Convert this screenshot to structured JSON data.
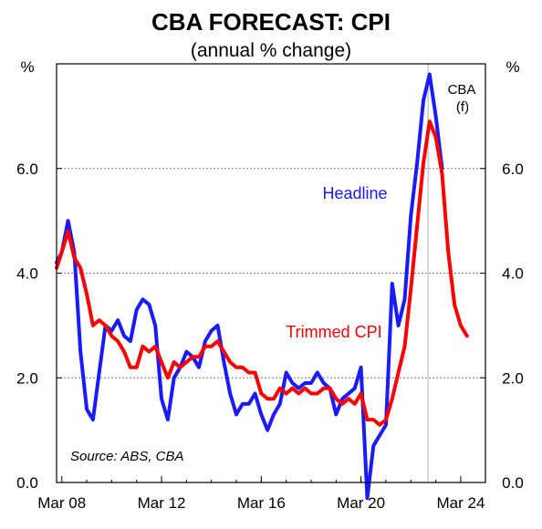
{
  "chart_data": {
    "type": "line",
    "title": "CBA FORECAST: CPI",
    "subtitle": "(annual % change)",
    "y_unit_left": "%",
    "y_unit_right": "%",
    "ylim": [
      0,
      8
    ],
    "y_ticks": [
      "0.0",
      "2.0",
      "4.0",
      "6.0"
    ],
    "y_tick_values": [
      0,
      2,
      4,
      6
    ],
    "x_ticks": [
      "Mar 08",
      "Mar 12",
      "Mar 16",
      "Mar 20",
      "Mar 24"
    ],
    "x_tick_values": [
      2008.21,
      2012.21,
      2016.21,
      2020.21,
      2024.21
    ],
    "xlim": [
      2008.0,
      2025.2
    ],
    "forecast_start": 2022.9,
    "forecast_label": [
      "CBA",
      "(f)"
    ],
    "source": "Source: ABS, CBA",
    "grid": "horizontal-dotted",
    "colors": {
      "headline": "#1a1aff",
      "trimmed": "#ff0000",
      "forecast_line": "#b0b0b0",
      "grid": "#808080"
    },
    "series": [
      {
        "name": "Headline",
        "label_text": "Headline",
        "color": "#1a1aff",
        "x": [
          2008.0,
          2008.21,
          2008.46,
          2008.71,
          2008.96,
          2009.21,
          2009.46,
          2009.71,
          2009.96,
          2010.21,
          2010.46,
          2010.71,
          2010.96,
          2011.21,
          2011.46,
          2011.71,
          2011.96,
          2012.21,
          2012.46,
          2012.71,
          2012.96,
          2013.21,
          2013.46,
          2013.71,
          2013.96,
          2014.21,
          2014.46,
          2014.71,
          2014.96,
          2015.21,
          2015.46,
          2015.71,
          2015.96,
          2016.21,
          2016.46,
          2016.71,
          2016.96,
          2017.21,
          2017.46,
          2017.71,
          2017.96,
          2018.21,
          2018.46,
          2018.71,
          2018.96,
          2019.21,
          2019.46,
          2019.71,
          2019.96,
          2020.21,
          2020.46,
          2020.71,
          2020.96,
          2021.21,
          2021.46,
          2021.71,
          2021.96,
          2022.21,
          2022.46,
          2022.71,
          2022.96,
          2023.21,
          2023.46
        ],
        "values": [
          4.2,
          4.4,
          5.0,
          4.4,
          2.5,
          1.4,
          1.2,
          2.1,
          3.0,
          2.9,
          3.1,
          2.8,
          2.7,
          3.3,
          3.5,
          3.4,
          3.0,
          1.6,
          1.2,
          2.0,
          2.2,
          2.5,
          2.4,
          2.2,
          2.7,
          2.9,
          3.0,
          2.3,
          1.7,
          1.3,
          1.5,
          1.5,
          1.7,
          1.3,
          1.0,
          1.3,
          1.5,
          2.1,
          1.9,
          1.8,
          1.9,
          1.9,
          2.1,
          1.9,
          1.8,
          1.3,
          1.6,
          1.7,
          1.8,
          2.2,
          -0.3,
          0.7,
          0.9,
          1.1,
          3.8,
          3.0,
          3.5,
          5.1,
          6.1,
          7.3,
          7.8,
          7.0,
          6.0
        ]
      },
      {
        "name": "Trimmed CPI",
        "label_text": "Trimmed CPI",
        "color": "#ff0000",
        "x": [
          2008.0,
          2008.21,
          2008.46,
          2008.71,
          2008.96,
          2009.21,
          2009.46,
          2009.71,
          2009.96,
          2010.21,
          2010.46,
          2010.71,
          2010.96,
          2011.21,
          2011.46,
          2011.71,
          2011.96,
          2012.21,
          2012.46,
          2012.71,
          2012.96,
          2013.21,
          2013.46,
          2013.71,
          2013.96,
          2014.21,
          2014.46,
          2014.71,
          2014.96,
          2015.21,
          2015.46,
          2015.71,
          2015.96,
          2016.21,
          2016.46,
          2016.71,
          2016.96,
          2017.21,
          2017.46,
          2017.71,
          2017.96,
          2018.21,
          2018.46,
          2018.71,
          2018.96,
          2019.21,
          2019.46,
          2019.71,
          2019.96,
          2020.21,
          2020.46,
          2020.71,
          2020.96,
          2021.21,
          2021.46,
          2021.71,
          2021.96,
          2022.21,
          2022.46,
          2022.71,
          2022.96,
          2023.21,
          2023.46,
          2023.71,
          2023.96,
          2024.21,
          2024.46
        ],
        "values": [
          4.1,
          4.4,
          4.8,
          4.3,
          4.1,
          3.6,
          3.0,
          3.1,
          3.0,
          2.8,
          2.7,
          2.5,
          2.2,
          2.2,
          2.6,
          2.5,
          2.6,
          2.3,
          2.0,
          2.3,
          2.2,
          2.3,
          2.4,
          2.4,
          2.6,
          2.6,
          2.7,
          2.5,
          2.3,
          2.2,
          2.2,
          2.1,
          2.1,
          1.7,
          1.6,
          1.6,
          1.8,
          1.7,
          1.8,
          1.7,
          1.8,
          1.7,
          1.7,
          1.8,
          1.8,
          1.6,
          1.5,
          1.6,
          1.5,
          1.7,
          1.2,
          1.2,
          1.1,
          1.2,
          1.6,
          2.1,
          2.6,
          3.7,
          4.9,
          6.1,
          6.9,
          6.6,
          5.9,
          4.4,
          3.4,
          3.0,
          2.8
        ]
      }
    ]
  }
}
